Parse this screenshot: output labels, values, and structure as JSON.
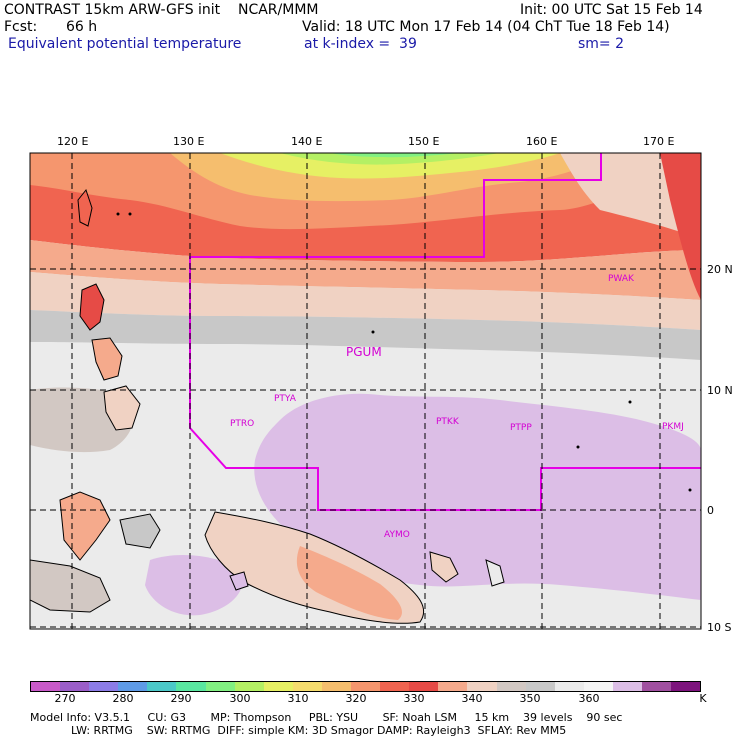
{
  "header": {
    "left1": "CONTRAST 15km ARW-GFS init    NCAR/MMM",
    "init": "Init: 00 UTC Sat 15 Feb 14",
    "fcst_label": "Fcst:",
    "fcst_value": "66 h",
    "valid": "Valid: 18 UTC Mon 17 Feb 14 (04 ChT Tue 18 Feb 14)",
    "field": "Equivalent potential temperature",
    "level": "at k-index =  39",
    "smooth": "sm= 2"
  },
  "map": {
    "lon_labels": [
      "120 E",
      "130 E",
      "140 E",
      "150 E",
      "160 E",
      "170 E"
    ],
    "lat_labels": [
      "20 N",
      "10 N",
      "0",
      "10 S"
    ],
    "stations": [
      "PWAK",
      "PGUM",
      "PTYA",
      "PTRO",
      "PTKK",
      "PTPP",
      "PKMJ",
      "AYMO"
    ]
  },
  "colorbar": {
    "labels": [
      "270",
      "280",
      "290",
      "300",
      "310",
      "320",
      "330",
      "340",
      "350",
      "360",
      "K"
    ],
    "colors": [
      "#c85ac8",
      "#9b5ec8",
      "#8c7ce6",
      "#5f9be6",
      "#4cc8c8",
      "#5ae6a0",
      "#82f082",
      "#b4f064",
      "#e6f064",
      "#f5dc6e",
      "#f5be6e",
      "#f5966e",
      "#f06450",
      "#e64b46",
      "#f5aa8c",
      "#f0d2c3",
      "#d2c8c3",
      "#c8c8c8",
      "#ebebeb",
      "#f5f5f5",
      "#dcbee6",
      "#a050a0",
      "#7d147d"
    ]
  },
  "model_info": {
    "line1": "Model Info: V3.5.1     CU: G3       MP: Thompson     PBL: YSU       SF: Noah LSM     15 km    39 levels    90 sec",
    "line2": "LW: RRTMG    SW: RRTMG  DIFF: simple KM: 3D Smagor DAMP: Rayleigh3  SFLAY: Rev MM5"
  }
}
